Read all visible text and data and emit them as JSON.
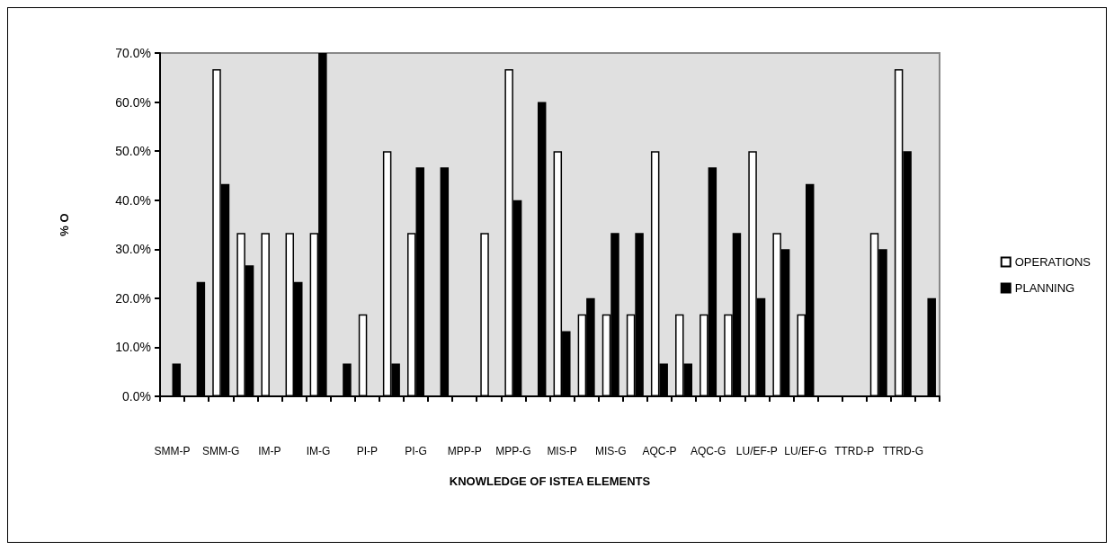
{
  "chart_data": {
    "type": "bar",
    "xlabel": "KNOWLEDGE OF ISTEA ELEMENTS",
    "ylabel": "% O",
    "categories": [
      "SMM-P",
      null,
      "SMM-G",
      null,
      "IM-P",
      null,
      "IM-G",
      null,
      "PI-P",
      null,
      "PI-G",
      null,
      "MPP-P",
      null,
      "MPP-G",
      null,
      "MIS-P",
      null,
      "MIS-G",
      null,
      "AQC-P",
      null,
      "AQC-G",
      null,
      "LU/EF-P",
      null,
      "LU/EF-G",
      null,
      "TTRD-P",
      null,
      "TTRD-G",
      null
    ],
    "series": [
      {
        "name": "OPERATIONS",
        "color": "#ffffff",
        "values": [
          null,
          null,
          66.7,
          33.3,
          33.3,
          33.3,
          33.3,
          null,
          16.7,
          50,
          33.3,
          null,
          null,
          33.3,
          66.7,
          null,
          50,
          16.7,
          16.7,
          16.7,
          50,
          16.7,
          16.7,
          16.7,
          50,
          33.3,
          16.7,
          null,
          null,
          33.3,
          66.7,
          null
        ]
      },
      {
        "name": "PLANNING",
        "color": "#000000",
        "values": [
          6.7,
          23.3,
          43.3,
          26.7,
          null,
          23.3,
          70,
          6.7,
          null,
          6.7,
          46.7,
          46.7,
          null,
          null,
          40,
          60,
          13.3,
          20,
          33.3,
          33.3,
          6.7,
          6.7,
          46.7,
          33.3,
          20,
          30,
          43.3,
          null,
          null,
          30,
          50,
          20
        ]
      }
    ],
    "ylim": [
      0,
      70
    ],
    "yticks": [
      {
        "value": 0,
        "label": "0.0%"
      },
      {
        "value": 10,
        "label": "10.0%"
      },
      {
        "value": 20,
        "label": "20.0%"
      },
      {
        "value": 30,
        "label": "30.0%"
      },
      {
        "value": 40,
        "label": "40.0%"
      },
      {
        "value": 50,
        "label": "50.0%"
      },
      {
        "value": 60,
        "label": "60.0%"
      },
      {
        "value": 70,
        "label": "70.0%"
      }
    ],
    "grid": false,
    "legend": "right"
  }
}
